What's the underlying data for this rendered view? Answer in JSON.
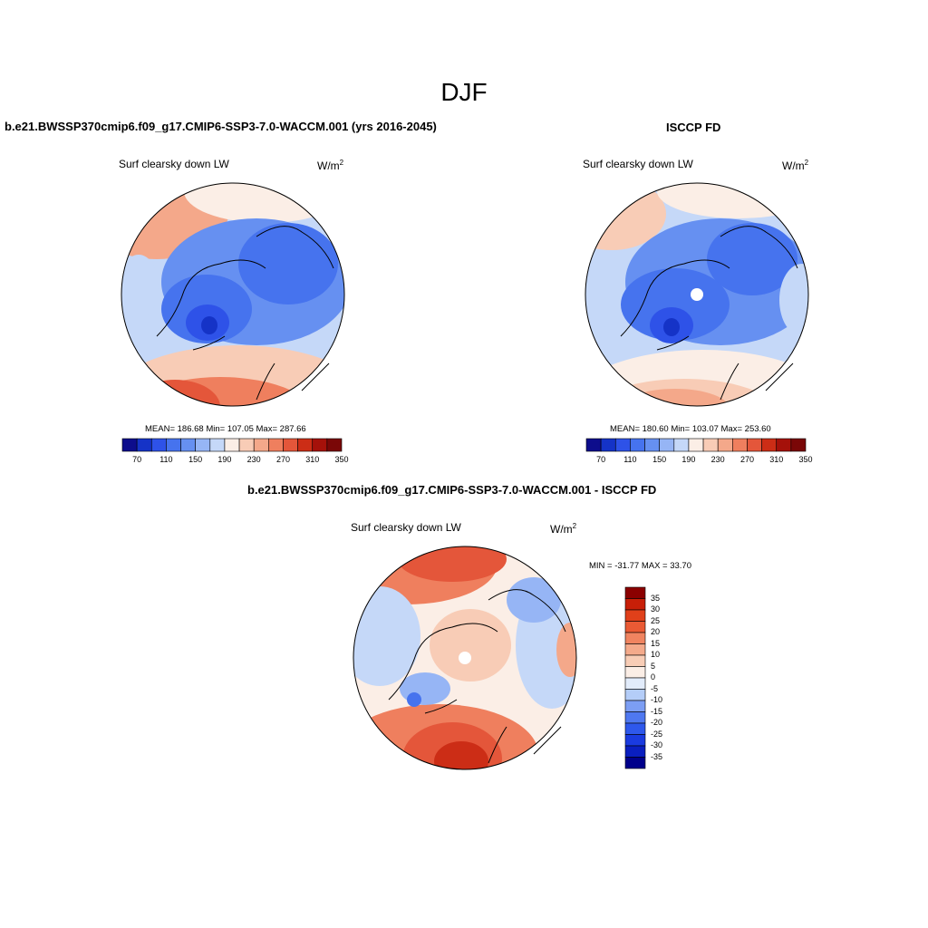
{
  "figure_title": "DJF",
  "panels": [
    {
      "title": "b.e21.BWSSP370cmip6.f09_g17.CMIP6-SSP3-7.0-WACCM.001 (yrs 2016-2045)",
      "variable": "Surf clearsky down LW",
      "units": "W/m",
      "units_sup": "2",
      "stats": "MEAN= 186.68  Min= 107.05  Max= 287.66"
    },
    {
      "title": "ISCCP FD",
      "variable": "Surf clearsky down LW",
      "units": "W/m",
      "units_sup": "2",
      "stats": "MEAN= 180.60  Min= 103.07  Max= 253.60"
    },
    {
      "title": "b.e21.BWSSP370cmip6.f09_g17.CMIP6-SSP3-7.0-WACCM.001 - ISCCP FD",
      "variable": "Surf clearsky down LW",
      "units": "W/m",
      "units_sup": "2",
      "stats": "MIN = -31.77 MAX =  33.70"
    }
  ],
  "colorbars": {
    "abs_colors": [
      "#0d0d8c",
      "#1533c7",
      "#2e52e8",
      "#4673ee",
      "#6690f1",
      "#96b5f5",
      "#c5d8f8",
      "#fbeee6",
      "#f8ccb6",
      "#f4a88a",
      "#ef7f5e",
      "#e4563a",
      "#cc2d16",
      "#a5110a",
      "#7a0707"
    ],
    "abs_tick_labels": [
      "70",
      "110",
      "150",
      "190",
      "230",
      "270",
      "310",
      "350"
    ],
    "diff_colors": [
      "#00008b",
      "#0a1fc0",
      "#1a3be0",
      "#2e58ec",
      "#4f78f0",
      "#7c9ef4",
      "#b4cdf8",
      "#e2ecfb",
      "#fbeee6",
      "#f8cdb6",
      "#f4aa8b",
      "#f08460",
      "#ea5a34",
      "#e0401a",
      "#c81f08",
      "#8b0000"
    ],
    "diff_tick_labels": [
      "35",
      "30",
      "25",
      "20",
      "15",
      "10",
      "5",
      "0",
      "-5",
      "-10",
      "-15",
      "-20",
      "-25",
      "-30",
      "-35"
    ]
  },
  "map_colors": {
    "deep_blue": "#2e52e8",
    "mid_blue": "#4673ee",
    "light_blue": "#6690f1",
    "pale_blue": "#c5d8f8",
    "cream": "#fbeee6",
    "peach": "#f8ccb6",
    "orange": "#ef7f5e",
    "red": "#e4563a",
    "dark_red": "#cc2d16",
    "pole_hole": "#ffffff"
  }
}
